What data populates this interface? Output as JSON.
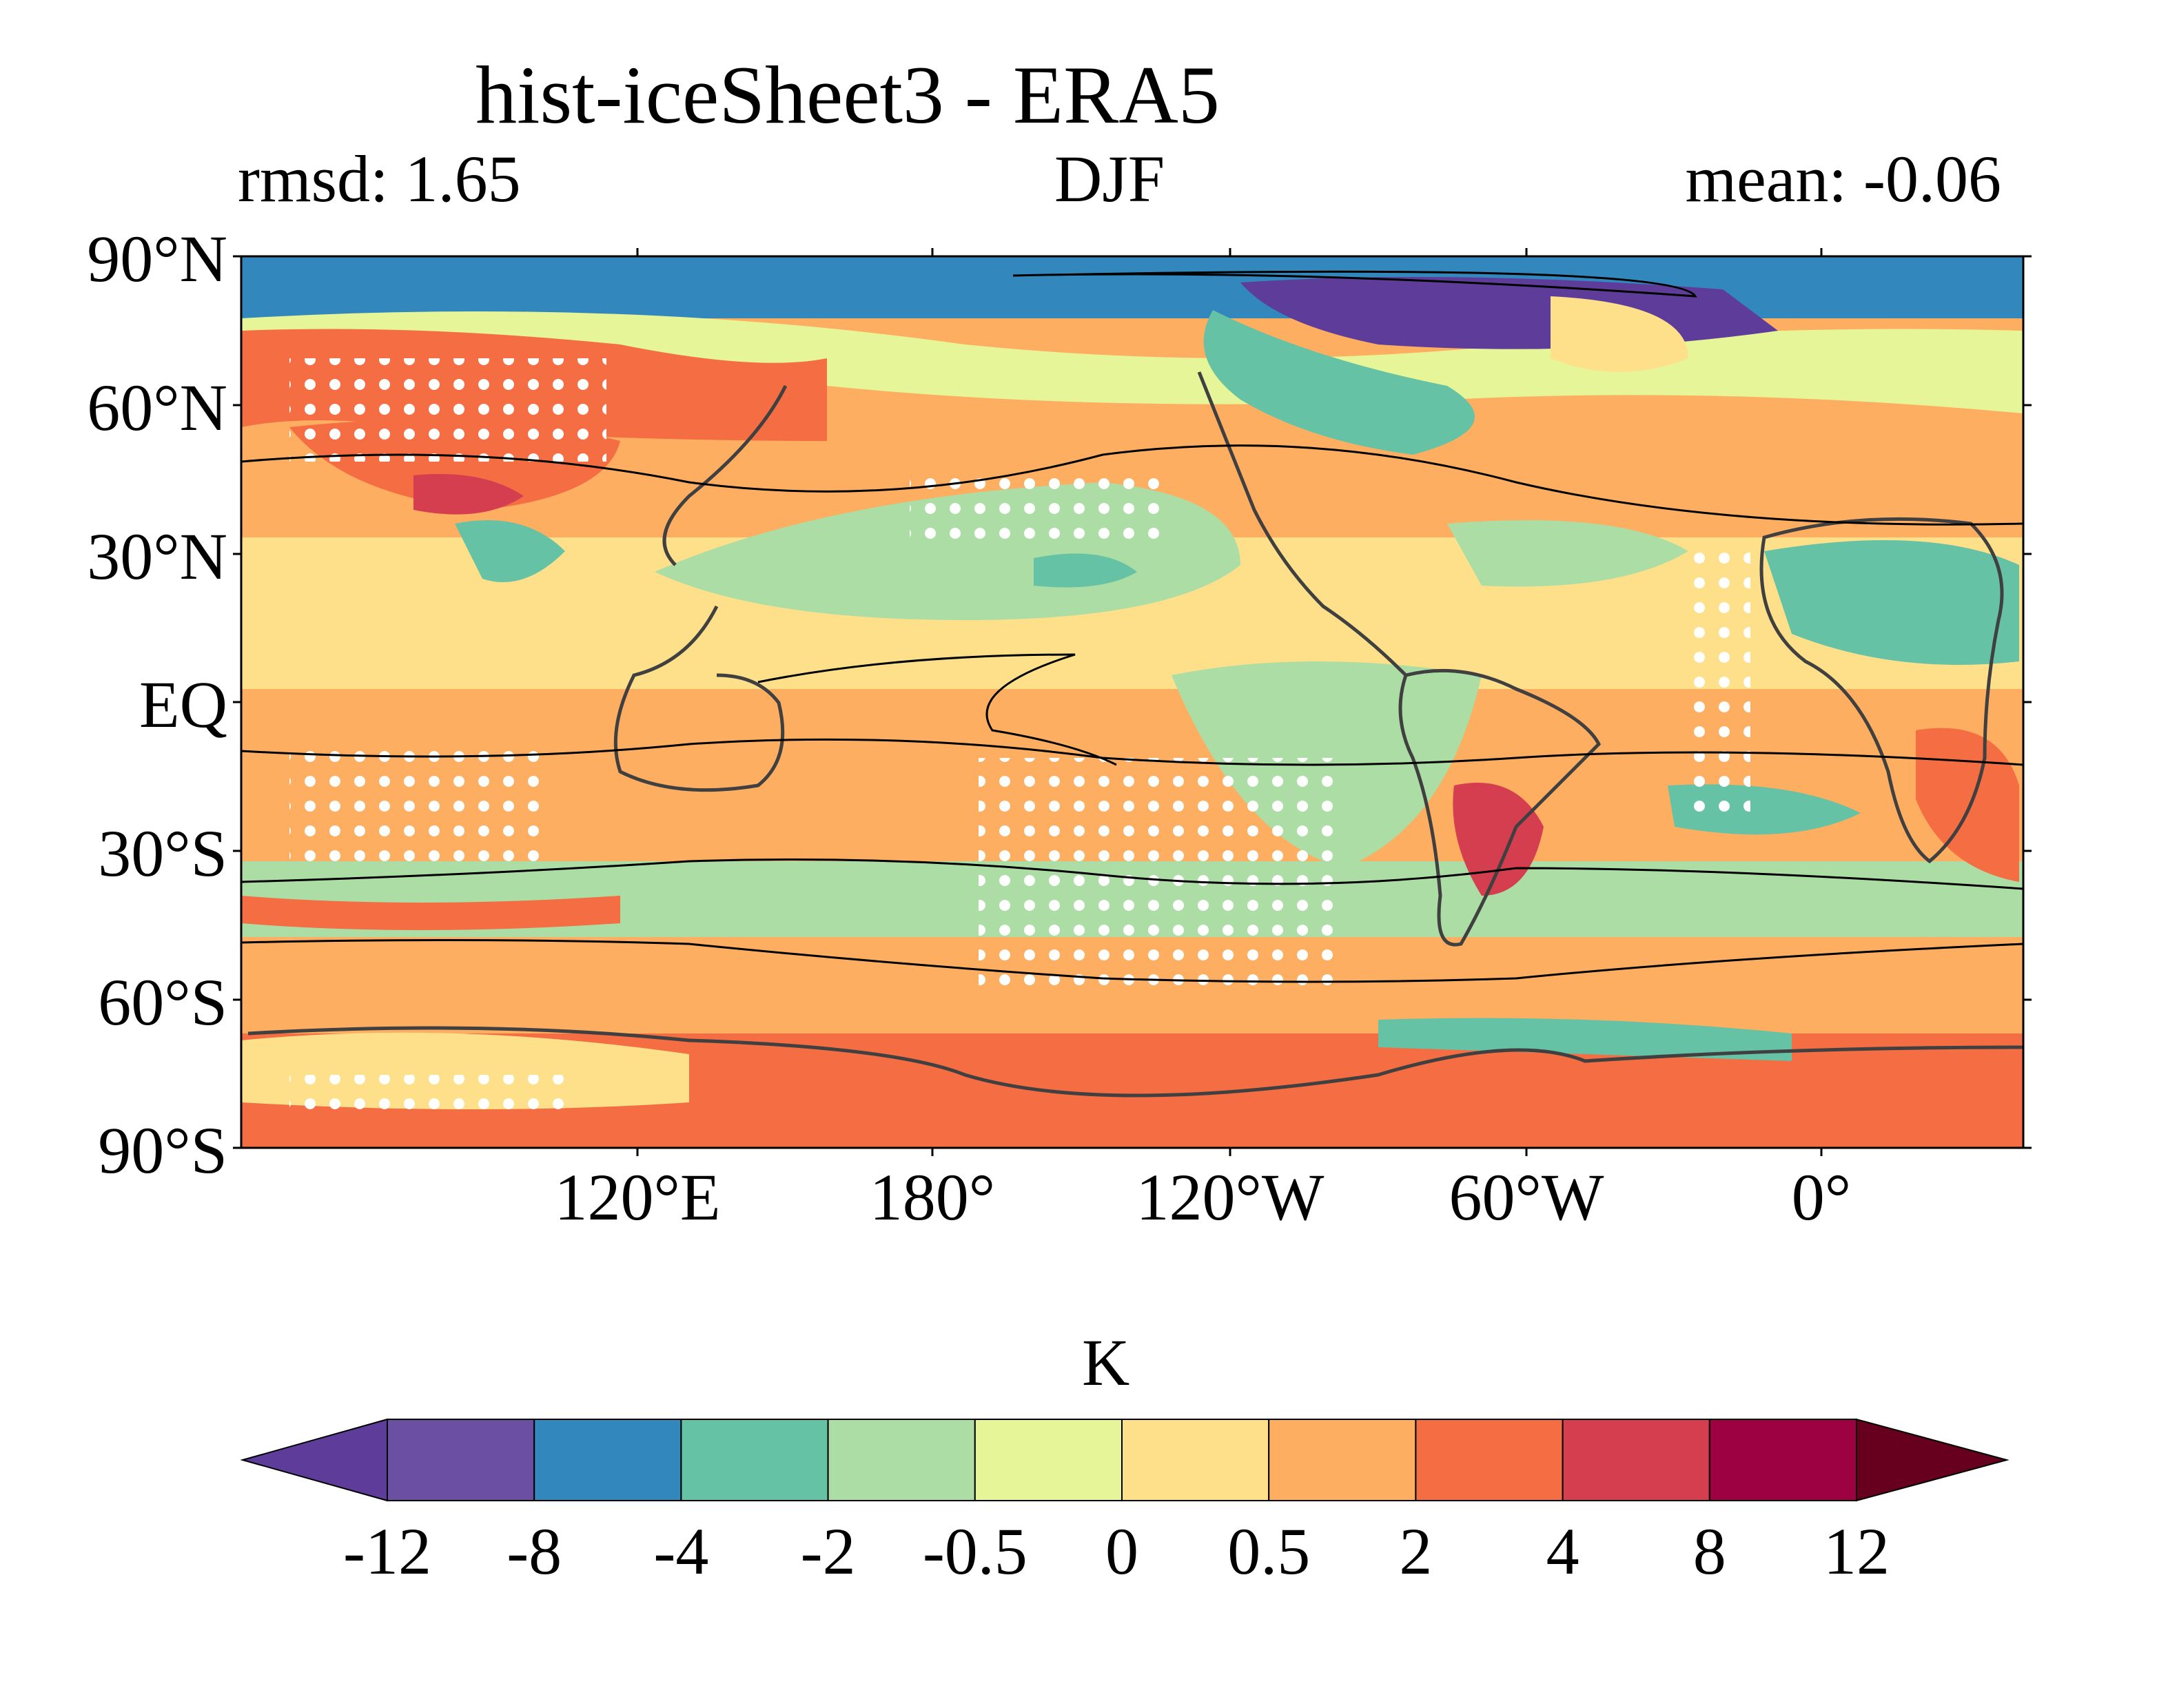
{
  "title": "hist-iceSheet3 - ERA5",
  "left_label": "rmsd: 1.65",
  "center_label": "DJF",
  "right_label": "mean: -0.06",
  "map": {
    "projection": "PlateCarree",
    "central_longitude": "~180° offset (0° near right edge)",
    "lat_ticks": [
      "90°N",
      "60°N",
      "30°N",
      "EQ",
      "30°S",
      "60°S",
      "90°S"
    ],
    "lon_ticks": [
      "120°E",
      "180°",
      "120°W",
      "60°W",
      "0°"
    ],
    "stippling": "white dots mark selected regions",
    "contour_color": "#000000",
    "coastline_color": "#404040"
  },
  "colorbar": {
    "label": "K",
    "ticks": [
      "-12",
      "-8",
      "-4",
      "-2",
      "-0.5",
      "0",
      "0.5",
      "2",
      "4",
      "8",
      "12"
    ],
    "colors": [
      "#5e3c99",
      "#6a4fa3",
      "#3288bd",
      "#66c2a5",
      "#abdda4",
      "#e6f598",
      "#fee08b",
      "#fdae61",
      "#f46d43",
      "#d53e4f",
      "#9e0142",
      "#67001f"
    ],
    "extend": "both"
  }
}
